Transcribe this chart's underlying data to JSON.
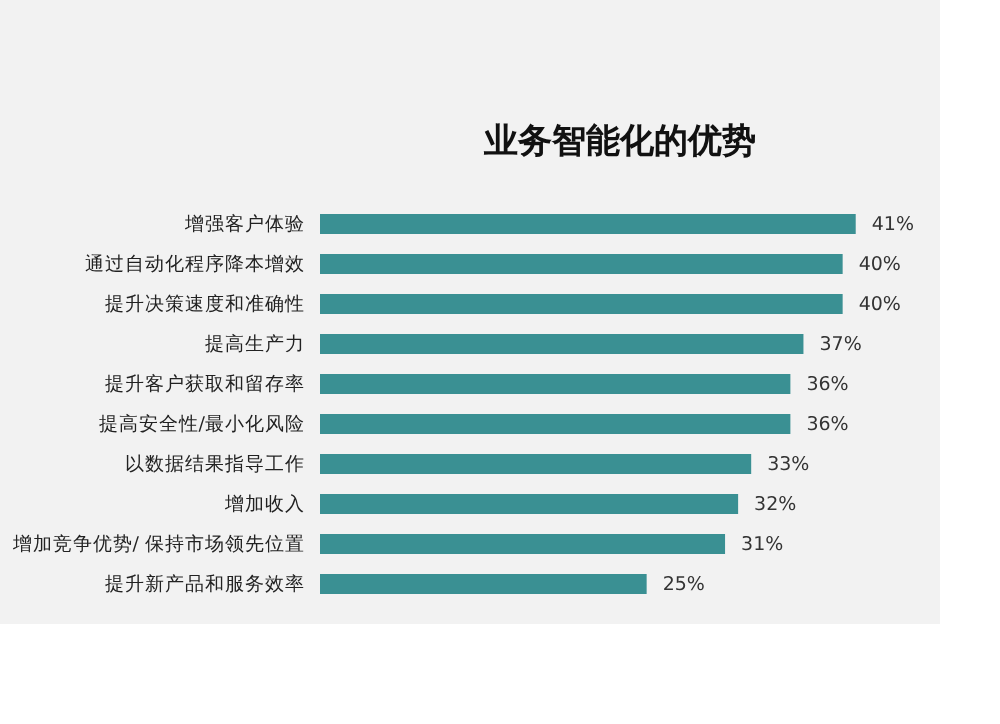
{
  "chart_data": {
    "type": "bar",
    "orientation": "horizontal",
    "title": "业务智能化的优势",
    "categories": [
      "增强客户体验",
      "通过自动化程序降本增效",
      "提升决策速度和准确性",
      "提高生产力",
      "提升客户获取和留存率",
      "提高安全性/最小化风险",
      "以数据结果指导工作",
      "增加收入",
      "增加竞争优势/ 保持市场领先位置",
      "提升新产品和服务效率"
    ],
    "values": [
      41,
      40,
      40,
      37,
      36,
      36,
      33,
      32,
      31,
      25
    ],
    "value_labels": [
      "41%",
      "40%",
      "40%",
      "37%",
      "36%",
      "36%",
      "33%",
      "32%",
      "31%",
      "25%"
    ],
    "color": "#3a9093"
  }
}
